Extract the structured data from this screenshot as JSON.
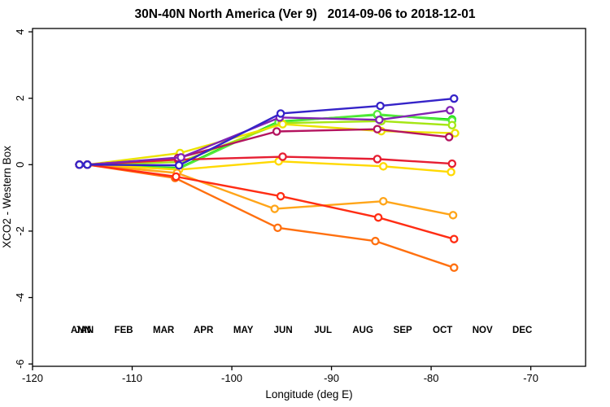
{
  "figure": {
    "title": "30N-40N North America (Ver 9)   2014-09-06 to 2018-12-01",
    "xlabel": "Longitude (deg E)",
    "ylabel": "XCO2 - Western Box"
  },
  "chart_data": {
    "type": "line",
    "title": "30N-40N North America (Ver 9)   2014-09-06 to 2018-12-01",
    "xlabel": "Longitude (deg E)",
    "ylabel": "XCO2 - Western Box",
    "xlim": [
      -120,
      -64.5
    ],
    "ylim": [
      -6.07,
      4.1
    ],
    "xticks": [
      -120,
      -110,
      -100,
      -90,
      -80,
      -70
    ],
    "yticks": [
      -6,
      -4,
      -2,
      0,
      2,
      4
    ],
    "grid": false,
    "marker": "open-circle",
    "legend_position": "inside-bottom-row",
    "month_label_y": -5.07,
    "month_labels": [
      {
        "label": "ANN",
        "lon": -115.15,
        "color": "#00C800"
      },
      {
        "label": "JAN",
        "lon": -114.8,
        "color": "#00E100"
      },
      {
        "label": "FEB",
        "lon": -110.85,
        "color": "#64F050"
      },
      {
        "label": "MAR",
        "lon": -106.85,
        "color": "#B4EB28"
      },
      {
        "label": "APR",
        "lon": -102.85,
        "color": "#F0E63C"
      },
      {
        "label": "MAY",
        "lon": -98.85,
        "color": "#FFDC3C"
      },
      {
        "label": "JUN",
        "lon": -94.85,
        "color": "#FFB450"
      },
      {
        "label": "JUL",
        "lon": -90.85,
        "color": "#FF8246"
      },
      {
        "label": "AUG",
        "lon": -86.85,
        "color": "#FF5050"
      },
      {
        "label": "SEP",
        "lon": -82.85,
        "color": "#F04659"
      },
      {
        "label": "OCT",
        "lon": -78.85,
        "color": "#D25A96"
      },
      {
        "label": "NOV",
        "lon": -74.85,
        "color": "#9655D2"
      },
      {
        "label": "DEC",
        "lon": -70.85,
        "color": "#6060F0"
      }
    ],
    "series": [
      {
        "name": "JAN",
        "color": "#00DC00",
        "x": [
          -115.3,
          -114.5,
          -105.3,
          -95.3,
          -85.4,
          -77.9
        ],
        "y": [
          0,
          0,
          -0.1,
          1.3,
          1.5,
          1.36
        ]
      },
      {
        "name": "FEB",
        "color": "#55EB3C",
        "x": [
          -115.3,
          -114.5,
          -105.3,
          -95.3,
          -85.4,
          -77.9
        ],
        "y": [
          0,
          0,
          -0.12,
          1.28,
          1.52,
          1.33
        ]
      },
      {
        "name": "MAR",
        "color": "#A5E614",
        "x": [
          -115.3,
          -114.5,
          -105.2,
          -95.0,
          -85.0,
          -77.9
        ],
        "y": [
          0,
          0,
          0.08,
          1.25,
          1.31,
          1.19
        ]
      },
      {
        "name": "APR",
        "color": "#EBE300",
        "x": [
          -115.3,
          -114.5,
          -105.2,
          -94.9,
          -85.0,
          -77.6
        ],
        "y": [
          0,
          0,
          0.35,
          1.22,
          1.01,
          0.95
        ]
      },
      {
        "name": "MAY",
        "color": "#FFD900",
        "x": [
          -115.3,
          -114.5,
          -105.3,
          -95.3,
          -84.8,
          -78.0
        ],
        "y": [
          0,
          0,
          -0.15,
          0.1,
          -0.05,
          -0.22
        ]
      },
      {
        "name": "JUN",
        "color": "#FFA519",
        "x": [
          -115.3,
          -114.5,
          -105.5,
          -95.7,
          -84.8,
          -77.8
        ],
        "y": [
          0,
          0,
          -0.25,
          -1.33,
          -1.1,
          -1.52
        ]
      },
      {
        "name": "JUL",
        "color": "#FF700F",
        "x": [
          -115.3,
          -114.5,
          -105.7,
          -95.4,
          -85.6,
          -77.7
        ],
        "y": [
          0,
          0,
          -0.4,
          -1.9,
          -2.3,
          -3.1
        ]
      },
      {
        "name": "AUG",
        "color": "#FF2D14",
        "x": [
          -115.3,
          -114.5,
          -105.6,
          -95.1,
          -85.3,
          -77.7
        ],
        "y": [
          0,
          0,
          -0.36,
          -0.95,
          -1.59,
          -2.24
        ]
      },
      {
        "name": "SEP",
        "color": "#E61E32",
        "x": [
          -115.3,
          -114.5,
          -105.4,
          -94.9,
          -85.4,
          -77.9
        ],
        "y": [
          0,
          0,
          0.15,
          0.24,
          0.17,
          0.03
        ]
      },
      {
        "name": "OCT",
        "color": "#B4145F",
        "x": [
          -115.3,
          -114.5,
          -105.4,
          -95.5,
          -85.4,
          -78.2
        ],
        "y": [
          0,
          0,
          0.2,
          1.0,
          1.07,
          0.83
        ]
      },
      {
        "name": "NOV",
        "color": "#8223B4",
        "x": [
          -115.3,
          -114.5,
          -105.1,
          -95.2,
          -85.2,
          -78.1
        ],
        "y": [
          0,
          0,
          0.22,
          1.42,
          1.35,
          1.64
        ]
      },
      {
        "name": "DEC",
        "color": "#3523C8",
        "x": [
          -115.3,
          -114.5,
          -105.3,
          -95.1,
          -85.1,
          -77.7
        ],
        "y": [
          0,
          0,
          -0.02,
          1.54,
          1.77,
          1.99
        ]
      }
    ]
  }
}
